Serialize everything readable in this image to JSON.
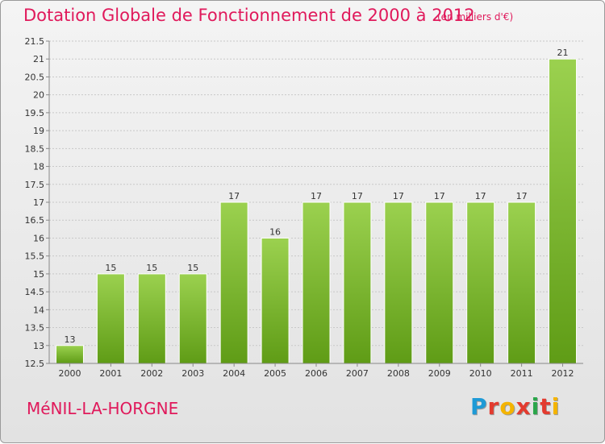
{
  "header": {
    "title": "Dotation Globale de Fonctionnement de 2000 à 2012",
    "unit": "(en milliers d'€)"
  },
  "footer": {
    "commune": "MéNIL-LA-HORGNE",
    "logo_text": "Proxiti",
    "logo_letters": [
      {
        "char": "P",
        "color": "#1e9ad6"
      },
      {
        "char": "r",
        "color": "#e33b2f"
      },
      {
        "char": "o",
        "color": "#f4b400"
      },
      {
        "char": "x",
        "color": "#e33b2f"
      },
      {
        "char": "i",
        "color": "#2aa64a"
      },
      {
        "char": "t",
        "color": "#e33b2f"
      },
      {
        "char": "i",
        "color": "#f4b400"
      }
    ]
  },
  "colors": {
    "title": "#e0195b",
    "bar_top": "#9bd14f",
    "bar_bottom": "#5f9c16",
    "grid": "#c8c8c8",
    "axis_text": "#333333"
  },
  "chart_data": {
    "type": "bar",
    "categories": [
      "2000",
      "2001",
      "2002",
      "2003",
      "2004",
      "2005",
      "2006",
      "2007",
      "2008",
      "2009",
      "2010",
      "2011",
      "2012"
    ],
    "values": [
      13,
      15,
      15,
      15,
      17,
      16,
      17,
      17,
      17,
      17,
      17,
      17,
      21
    ],
    "data_labels": [
      "13",
      "15",
      "15",
      "15",
      "17",
      "16",
      "17",
      "17",
      "17",
      "17",
      "17",
      "17",
      "21"
    ],
    "title": "Dotation Globale de Fonctionnement de 2000 à 2012",
    "subtitle": "(en milliers d'€)",
    "ylim": [
      12.5,
      21.5
    ],
    "yticks": [
      12.5,
      13,
      13.5,
      14,
      14.5,
      15,
      15.5,
      16,
      16.5,
      17,
      17.5,
      18,
      18.5,
      19,
      19.5,
      20,
      20.5,
      21,
      21.5
    ],
    "grid": true,
    "legend": "none"
  }
}
